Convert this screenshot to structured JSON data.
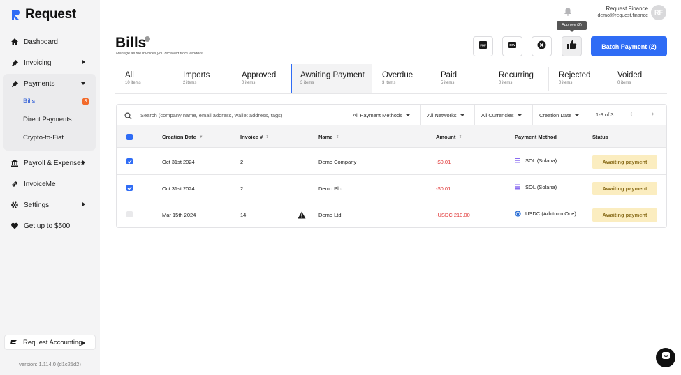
{
  "brand": {
    "name": "Request",
    "color": "#2f6cf5"
  },
  "sidebar": {
    "items": [
      {
        "label": "Dashboard",
        "icon": "home-icon"
      },
      {
        "label": "Invoicing",
        "icon": "pin-icon"
      },
      {
        "label": "Payments",
        "icon": "pin-icon"
      },
      {
        "label": "Payroll & Expenses",
        "icon": "bank-icon"
      },
      {
        "label": "InvoiceMe",
        "icon": "link-icon"
      },
      {
        "label": "Settings",
        "icon": "gear-icon"
      },
      {
        "label": "Get up to $500",
        "icon": "heart-icon"
      }
    ],
    "payments_sub": [
      {
        "label": "Bills",
        "badge": "3"
      },
      {
        "label": "Direct Payments"
      },
      {
        "label": "Crypto-to-Fiat"
      }
    ],
    "accounting_label": "Request Accounting",
    "version": "version: 1.114.0 (d1c25d2)"
  },
  "user": {
    "name": "Request Finance",
    "email": "demo@request.finance",
    "initials": "RF"
  },
  "page": {
    "title": "Bills",
    "subtitle": "Manage all the invoices you received from vendors"
  },
  "toolbar": {
    "tooltip": "Approve (2)",
    "batch_label": "Batch Payment (2)",
    "pdf_label": "PDF",
    "csv_label": "CSV"
  },
  "tabs": [
    {
      "label": "All",
      "count": "10 items"
    },
    {
      "label": "Imports",
      "count": "2 items"
    },
    {
      "label": "Approved",
      "count": "0 items"
    },
    {
      "label": "Awaiting Payment",
      "count": "3 items"
    },
    {
      "label": "Overdue",
      "count": "3 items"
    },
    {
      "label": "Paid",
      "count": "5 items"
    },
    {
      "label": "Recurring",
      "count": "0 items"
    },
    {
      "label": "Rejected",
      "count": "0 items"
    },
    {
      "label": "Voided",
      "count": "0 items"
    }
  ],
  "filters": {
    "search_placeholder": "Search (company name, email address, wallet address, tags)",
    "payment_methods": "All Payment Methods",
    "networks": "All Networks",
    "currencies": "All Currencies",
    "date": "Creation Date",
    "pager": "1-3 of 3"
  },
  "table": {
    "headers": [
      "Creation Date",
      "Invoice #",
      "Name",
      "Amount",
      "Payment Method",
      "Status"
    ],
    "rows": [
      {
        "date": "Oct 31st 2024",
        "invoice": "2",
        "name": "Demo Company",
        "amount": "-$0.01",
        "method": "SOL (Solana)",
        "status": "Awaiting payment"
      },
      {
        "date": "Oct 31st 2024",
        "invoice": "2",
        "name": "Demo Plc",
        "amount": "-$0.01",
        "method": "SOL (Solana)",
        "status": "Awaiting payment"
      },
      {
        "date": "Mar 15th 2024",
        "invoice": "14",
        "name": "Demo Ltd",
        "amount": "-USDC 210.00",
        "method": "USDC (Arbitrum One)",
        "status": "Awaiting payment"
      }
    ]
  }
}
